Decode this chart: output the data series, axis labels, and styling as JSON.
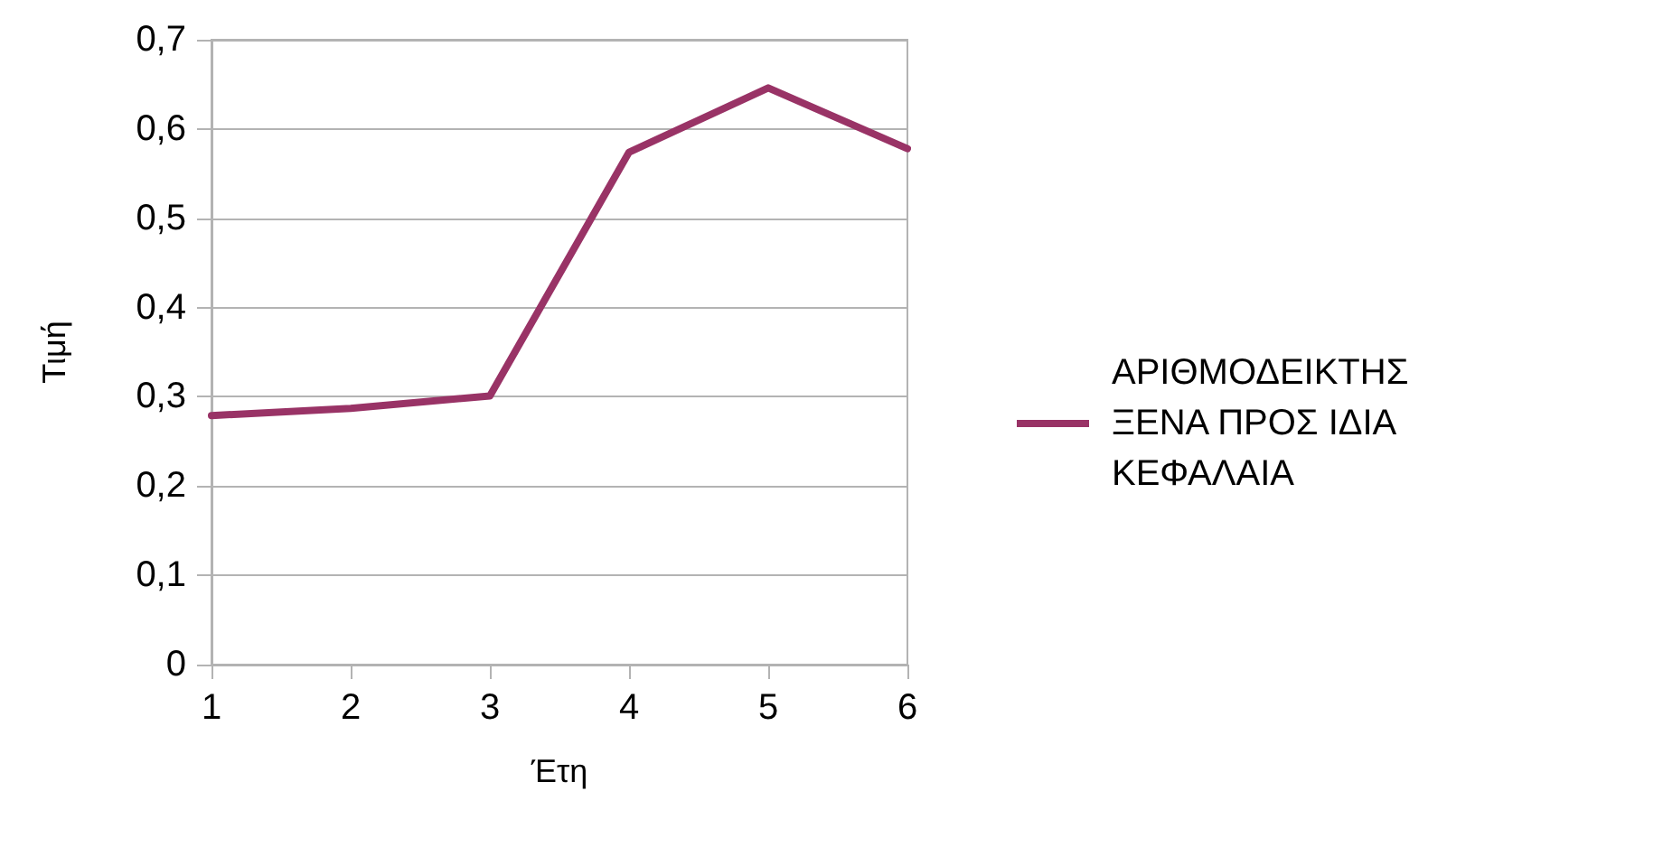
{
  "chart_data": {
    "type": "line",
    "xlabel": "Έτη",
    "ylabel": "Τιμή",
    "categories": [
      "1",
      "2",
      "3",
      "4",
      "5",
      "6"
    ],
    "series": [
      {
        "name": "ΑΡΙΘΜΟΔΕΙΚΤΗΣ ΞΕΝΑ ΠΡΟΣ ΙΔΙΑ ΚΕΦΑΛΑΙΑ",
        "color": "#993366",
        "values": [
          0.279,
          0.287,
          0.301,
          0.574,
          0.646,
          0.578
        ]
      }
    ],
    "ylim": [
      0,
      0.7
    ],
    "yticks": [
      {
        "value": 0,
        "label": "0"
      },
      {
        "value": 0.1,
        "label": "0,1"
      },
      {
        "value": 0.2,
        "label": "0,2"
      },
      {
        "value": 0.3,
        "label": "0,3"
      },
      {
        "value": 0.4,
        "label": "0,4"
      },
      {
        "value": 0.5,
        "label": "0,5"
      },
      {
        "value": 0.6,
        "label": "0,6"
      },
      {
        "value": 0.7,
        "label": "0,7"
      }
    ],
    "grid": "y",
    "legend": "right",
    "marker": "none",
    "line_style": "solid"
  }
}
